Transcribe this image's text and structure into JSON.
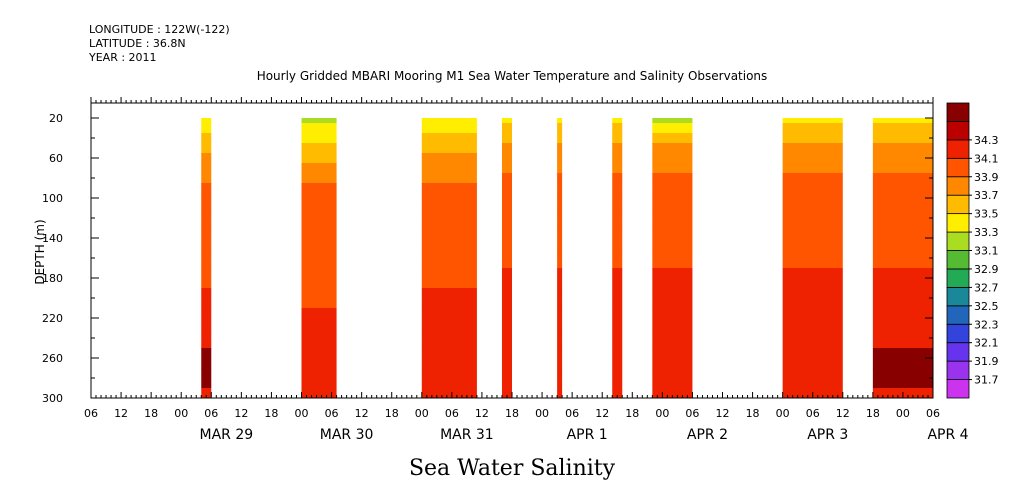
{
  "header": {
    "longitude": "LONGITUDE : 122W(-122)",
    "latitude": "LATITUDE : 36.8N",
    "year": "YEAR : 2011"
  },
  "chart_data": {
    "type": "heatmap",
    "title": "Hourly Gridded MBARI Mooring M1 Sea Water Temperature and Salinity Observations",
    "caption": "Sea Water Salinity",
    "ylabel": "DEPTH (m)",
    "xlabel": "",
    "x_unit": "hours since MAR 29 2011 00:00",
    "xlim": [
      -18,
      150
    ],
    "ylim": [
      300,
      5
    ],
    "y_inverted": true,
    "x_hour_ticks": [
      0,
      6,
      12,
      18
    ],
    "x_hour_tick_labels": [
      "00",
      "06",
      "12",
      "18"
    ],
    "days": [
      {
        "label": "MAR 29",
        "offset": 0
      },
      {
        "label": "MAR 30",
        "offset": 24
      },
      {
        "label": "MAR 31",
        "offset": 48
      },
      {
        "label": "APR  1",
        "offset": 72
      },
      {
        "label": "APR  2",
        "offset": 96
      },
      {
        "label": "APR  3",
        "offset": 120
      },
      {
        "label": "APR  4",
        "offset": 144
      }
    ],
    "y_ticks": [
      20,
      60,
      100,
      140,
      180,
      220,
      260,
      300
    ],
    "colorbar": {
      "levels": [
        31.7,
        31.9,
        32.1,
        32.3,
        32.5,
        32.7,
        32.9,
        33.1,
        33.3,
        33.5,
        33.7,
        33.9,
        34.1,
        34.3
      ],
      "colors": [
        "#cc33ee",
        "#9933ee",
        "#6633ee",
        "#3344dd",
        "#2266bb",
        "#1a8899",
        "#22aa55",
        "#55bb33",
        "#aadd22",
        "#ffee00",
        "#ffbb00",
        "#ff8800",
        "#ff5500",
        "#ee2200",
        "#bb0000",
        "#880000"
      ]
    },
    "depth_rows": [
      20,
      30,
      40,
      50,
      60,
      70,
      80,
      90,
      100,
      120,
      140,
      160,
      180,
      200,
      220,
      240,
      260,
      280,
      300
    ],
    "data_blocks": [
      {
        "start_hour": 4,
        "end_hour": 6,
        "salinity": [
          33.3,
          33.4,
          33.5,
          33.6,
          33.7,
          33.8,
          33.8,
          33.9,
          33.9,
          33.95,
          34.0,
          34.0,
          34.0,
          34.1,
          34.15,
          34.25,
          34.3,
          34.3,
          34.2
        ]
      },
      {
        "start_hour": 24,
        "end_hour": 31,
        "salinity": [
          33.2,
          33.3,
          33.4,
          33.5,
          33.6,
          33.7,
          33.8,
          33.9,
          33.9,
          33.95,
          34.0,
          34.0,
          34.0,
          34.05,
          34.1,
          34.2,
          34.25,
          34.25,
          34.15
        ]
      },
      {
        "start_hour": 48,
        "end_hour": 59,
        "salinity": [
          33.3,
          33.4,
          33.5,
          33.6,
          33.7,
          33.8,
          33.85,
          33.9,
          33.9,
          33.95,
          34.0,
          34.0,
          34.05,
          34.1,
          34.15,
          34.2,
          34.25,
          34.25,
          34.15
        ]
      },
      {
        "start_hour": 64,
        "end_hour": 66,
        "salinity": [
          33.3,
          33.5,
          33.6,
          33.7,
          33.8,
          33.85,
          33.9,
          33.9,
          33.95,
          34.0,
          34.0,
          34.05,
          34.1,
          34.1,
          34.15,
          34.2,
          34.2,
          34.2,
          34.15
        ]
      },
      {
        "start_hour": 75,
        "end_hour": 76,
        "salinity": [
          33.3,
          33.5,
          33.6,
          33.7,
          33.8,
          33.85,
          33.9,
          33.9,
          33.95,
          34.0,
          34.0,
          34.05,
          34.1,
          34.1,
          34.15,
          34.2,
          34.25,
          34.25,
          34.15
        ]
      },
      {
        "start_hour": 86,
        "end_hour": 88,
        "salinity": [
          33.3,
          33.5,
          33.6,
          33.7,
          33.8,
          33.85,
          33.9,
          33.9,
          33.95,
          34.0,
          34.0,
          34.05,
          34.1,
          34.1,
          34.15,
          34.2,
          34.2,
          34.2,
          34.15
        ]
      },
      {
        "start_hour": 94,
        "end_hour": 102,
        "salinity": [
          33.2,
          33.4,
          33.6,
          33.7,
          33.8,
          33.85,
          33.9,
          33.9,
          33.95,
          34.0,
          34.0,
          34.05,
          34.1,
          34.1,
          34.15,
          34.2,
          34.25,
          34.25,
          34.15
        ]
      },
      {
        "start_hour": 120,
        "end_hour": 132,
        "salinity": [
          33.3,
          33.5,
          33.6,
          33.7,
          33.8,
          33.85,
          33.9,
          33.9,
          33.95,
          34.0,
          34.0,
          34.05,
          34.1,
          34.15,
          34.2,
          34.25,
          34.25,
          34.25,
          34.15
        ]
      },
      {
        "start_hour": 138,
        "end_hour": 150,
        "salinity": [
          33.3,
          33.5,
          33.6,
          33.7,
          33.8,
          33.85,
          33.9,
          33.9,
          33.95,
          34.0,
          34.0,
          34.05,
          34.1,
          34.15,
          34.2,
          34.25,
          34.3,
          34.3,
          34.15
        ]
      }
    ]
  }
}
